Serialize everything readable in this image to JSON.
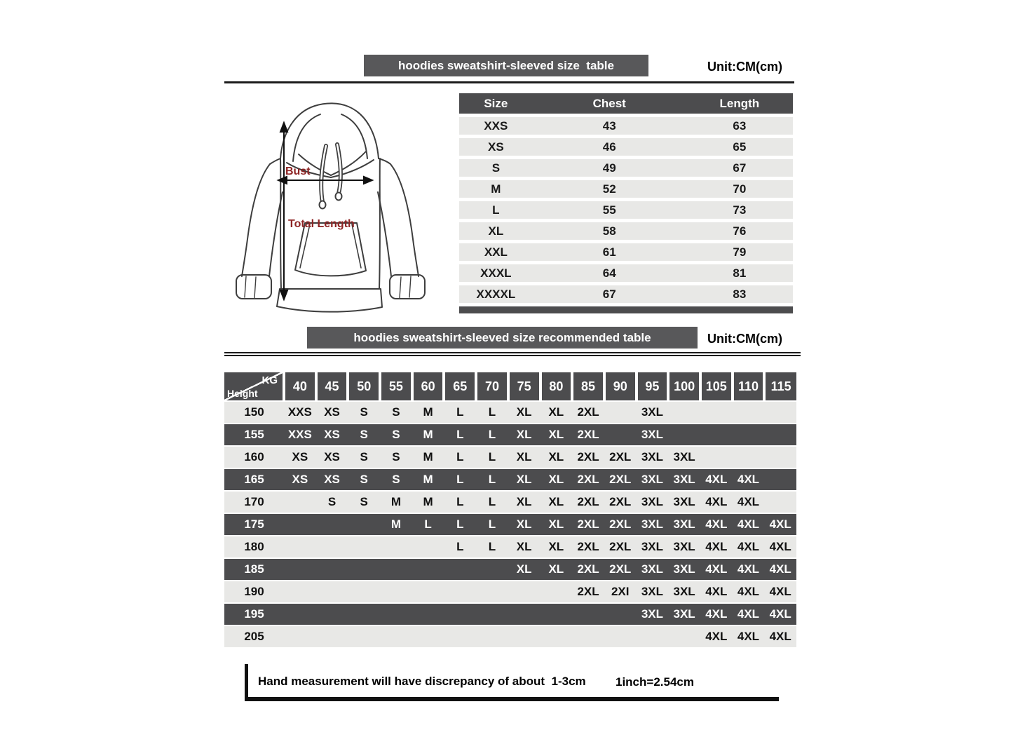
{
  "size_table": {
    "title": "hoodies sweatshirt-sleeved size  table",
    "unit": "Unit:CM(cm)",
    "headers": [
      "Size",
      "Chest",
      "Length"
    ],
    "rows": [
      {
        "size": "XXS",
        "chest": "43",
        "length": "63"
      },
      {
        "size": "XS",
        "chest": "46",
        "length": "65"
      },
      {
        "size": "S",
        "chest": "49",
        "length": "67"
      },
      {
        "size": "M",
        "chest": "52",
        "length": "70"
      },
      {
        "size": "L",
        "chest": "55",
        "length": "73"
      },
      {
        "size": "XL",
        "chest": "58",
        "length": "76"
      },
      {
        "size": "XXL",
        "chest": "61",
        "length": "79"
      },
      {
        "size": "XXXL",
        "chest": "64",
        "length": "81"
      },
      {
        "size": "XXXXL",
        "chest": "67",
        "length": "83"
      }
    ]
  },
  "diagram": {
    "bust_label": "Bust",
    "total_length_label": "Total Length"
  },
  "recommended_table": {
    "title": "hoodies sweatshirt-sleeved size recommended table",
    "unit": "Unit:CM(cm)",
    "corner_top": "KG",
    "corner_bottom": "Height",
    "kg_columns": [
      "40",
      "45",
      "50",
      "55",
      "60",
      "65",
      "70",
      "75",
      "80",
      "85",
      "90",
      "95",
      "100",
      "105",
      "110",
      "115"
    ],
    "rows": [
      {
        "height": "150",
        "values": [
          "XXS",
          "XS",
          "S",
          "S",
          "M",
          "L",
          "L",
          "XL",
          "XL",
          "2XL",
          "",
          "3XL",
          "",
          "",
          "",
          ""
        ]
      },
      {
        "height": "155",
        "values": [
          "XXS",
          "XS",
          "S",
          "S",
          "M",
          "L",
          "L",
          "XL",
          "XL",
          "2XL",
          "",
          "3XL",
          "",
          "",
          "",
          ""
        ]
      },
      {
        "height": "160",
        "values": [
          "XS",
          "XS",
          "S",
          "S",
          "M",
          "L",
          "L",
          "XL",
          "XL",
          "2XL",
          "2XL",
          "3XL",
          "3XL",
          "",
          "",
          ""
        ]
      },
      {
        "height": "165",
        "values": [
          "XS",
          "XS",
          "S",
          "S",
          "M",
          "L",
          "L",
          "XL",
          "XL",
          "2XL",
          "2XL",
          "3XL",
          "3XL",
          "4XL",
          "4XL",
          ""
        ]
      },
      {
        "height": "170",
        "values": [
          "",
          "S",
          "S",
          "M",
          "M",
          "L",
          "L",
          "XL",
          "XL",
          "2XL",
          "2XL",
          "3XL",
          "3XL",
          "4XL",
          "4XL",
          ""
        ]
      },
      {
        "height": "175",
        "values": [
          "",
          "",
          "",
          "M",
          "L",
          "L",
          "L",
          "XL",
          "XL",
          "2XL",
          "2XL",
          "3XL",
          "3XL",
          "4XL",
          "4XL",
          "4XL"
        ]
      },
      {
        "height": "180",
        "values": [
          "",
          "",
          "",
          "",
          "",
          "L",
          "L",
          "XL",
          "XL",
          "2XL",
          "2XL",
          "3XL",
          "3XL",
          "4XL",
          "4XL",
          "4XL"
        ]
      },
      {
        "height": "185",
        "values": [
          "",
          "",
          "",
          "",
          "",
          "",
          "",
          "XL",
          "XL",
          "2XL",
          "2XL",
          "3XL",
          "3XL",
          "4XL",
          "4XL",
          "4XL"
        ]
      },
      {
        "height": "190",
        "values": [
          "",
          "",
          "",
          "",
          "",
          "",
          "",
          "",
          "",
          "2XL",
          "2XI",
          "3XL",
          "3XL",
          "4XL",
          "4XL",
          "4XL"
        ]
      },
      {
        "height": "195",
        "values": [
          "",
          "",
          "",
          "",
          "",
          "",
          "",
          "",
          "",
          "",
          "",
          "3XL",
          "3XL",
          "4XL",
          "4XL",
          "4XL"
        ]
      },
      {
        "height": "205",
        "values": [
          "",
          "",
          "",
          "",
          "",
          "",
          "",
          "",
          "",
          "",
          "",
          "",
          "",
          "4XL",
          "4XL",
          "4XL"
        ]
      }
    ]
  },
  "footnote": {
    "text": "Hand measurement will have discrepancy of about  1-3cm",
    "conversion": "1inch=2.54cm"
  },
  "colors": {
    "title_bar": "#58585a",
    "dark_cell": "#4c4c4e",
    "light_row": "#e8e8e6",
    "label_red": "#8e2424"
  }
}
